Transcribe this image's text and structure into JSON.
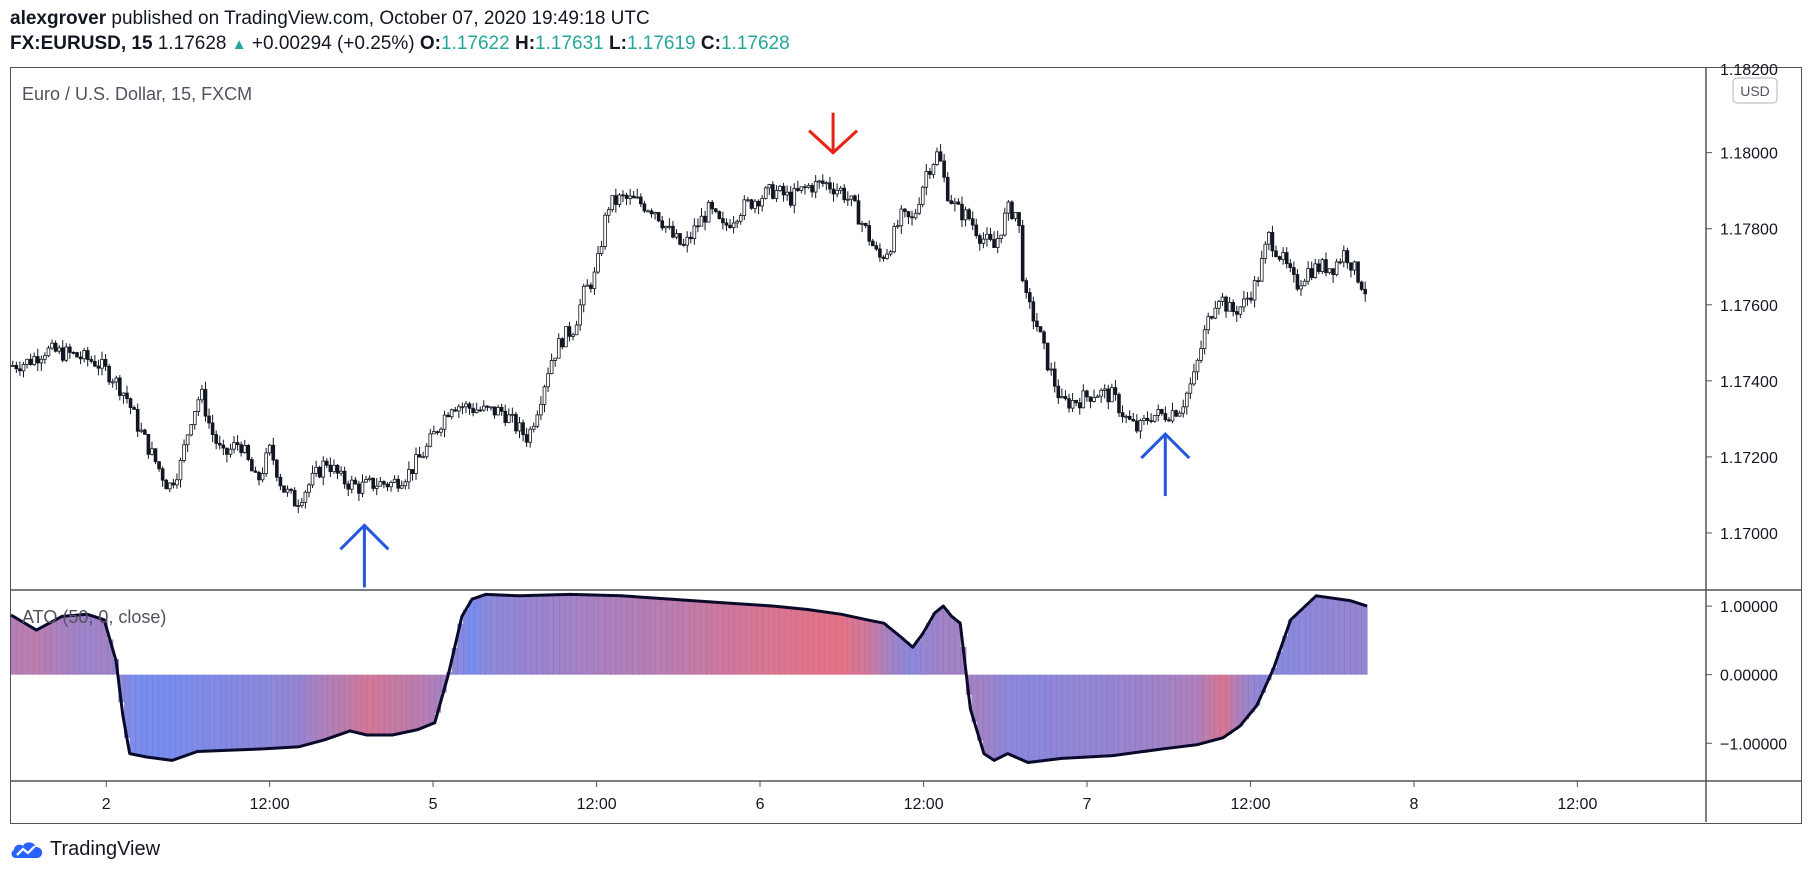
{
  "header": {
    "author": "alexgrover",
    "published_text": "published on TradingView.com, October 07, 2020 19:49:18 UTC",
    "symbol": "FX:EURUSD, 15",
    "last_price": "1.17628",
    "change_icon": "triangle-up-icon",
    "change": "+0.00294 (+0.25%)",
    "o_label": "O:",
    "o_value": "1.17622",
    "h_label": "H:",
    "h_value": "1.17631",
    "l_label": "L:",
    "l_value": "1.17619",
    "c_label": "C:",
    "c_value": "1.17628"
  },
  "footer": {
    "brand": "TradingView",
    "logo_icon": "tradingview-cloud-icon"
  },
  "colors": {
    "accent_up": "#26a69a",
    "arrow_down": "#e8221b",
    "arrow_up": "#2456e0",
    "ato_blue": "#5b7bf0",
    "ato_red": "#e55a6b",
    "ato_line": "#0a0a2a"
  },
  "chart_data": [
    {
      "type": "candlestick",
      "title": "Euro / U.S. Dollar, 15, FXCM",
      "currency_badge": "USD",
      "ylim": [
        1.1685,
        1.1822
      ],
      "y_ticks": [
        1.17,
        1.172,
        1.174,
        1.176,
        1.178,
        1.18
      ],
      "y_tick_labels": [
        "1.17000",
        "1.17200",
        "1.17400",
        "1.17600",
        "1.17800",
        "1.18000"
      ],
      "top_tick_label": "1.18200",
      "x_ticks": [
        {
          "pos": 0.0562,
          "label": "2"
        },
        {
          "pos": 0.1526,
          "label": "12:00"
        },
        {
          "pos": 0.249,
          "label": "5"
        },
        {
          "pos": 0.3455,
          "label": "12:00"
        },
        {
          "pos": 0.4419,
          "label": "6"
        },
        {
          "pos": 0.5384,
          "label": "12:00"
        },
        {
          "pos": 0.6348,
          "label": "7"
        },
        {
          "pos": 0.7313,
          "label": "12:00"
        },
        {
          "pos": 0.8277,
          "label": "8"
        },
        {
          "pos": 0.9241,
          "label": "12:00"
        }
      ],
      "close_path": [
        [
          0.0,
          1.1744
        ],
        [
          0.01,
          1.1745
        ],
        [
          0.02,
          1.1748
        ],
        [
          0.035,
          1.1747
        ],
        [
          0.05,
          1.1745
        ],
        [
          0.06,
          1.1741
        ],
        [
          0.068,
          1.1736
        ],
        [
          0.075,
          1.1728
        ],
        [
          0.085,
          1.1719
        ],
        [
          0.093,
          1.1712
        ],
        [
          0.1,
          1.1718
        ],
        [
          0.106,
          1.173
        ],
        [
          0.112,
          1.1737
        ],
        [
          0.118,
          1.1727
        ],
        [
          0.125,
          1.172
        ],
        [
          0.135,
          1.1724
        ],
        [
          0.145,
          1.1713
        ],
        [
          0.153,
          1.1722
        ],
        [
          0.16,
          1.1712
        ],
        [
          0.168,
          1.1708
        ],
        [
          0.178,
          1.1714
        ],
        [
          0.186,
          1.1719
        ],
        [
          0.195,
          1.1714
        ],
        [
          0.205,
          1.1712
        ],
        [
          0.215,
          1.1713
        ],
        [
          0.225,
          1.1713
        ],
        [
          0.235,
          1.1716
        ],
        [
          0.245,
          1.1722
        ],
        [
          0.252,
          1.1728
        ],
        [
          0.26,
          1.1734
        ],
        [
          0.27,
          1.1733
        ],
        [
          0.28,
          1.1732
        ],
        [
          0.29,
          1.1732
        ],
        [
          0.298,
          1.1728
        ],
        [
          0.305,
          1.1725
        ],
        [
          0.312,
          1.1735
        ],
        [
          0.318,
          1.1745
        ],
        [
          0.325,
          1.1751
        ],
        [
          0.332,
          1.1754
        ],
        [
          0.338,
          1.1763
        ],
        [
          0.345,
          1.1768
        ],
        [
          0.352,
          1.1786
        ],
        [
          0.36,
          1.1788
        ],
        [
          0.37,
          1.1787
        ],
        [
          0.38,
          1.1785
        ],
        [
          0.39,
          1.1778
        ],
        [
          0.397,
          1.1775
        ],
        [
          0.405,
          1.1781
        ],
        [
          0.412,
          1.1785
        ],
        [
          0.42,
          1.178
        ],
        [
          0.43,
          1.1785
        ],
        [
          0.44,
          1.1788
        ],
        [
          0.45,
          1.179
        ],
        [
          0.46,
          1.1788
        ],
        [
          0.47,
          1.1791
        ],
        [
          0.48,
          1.1792
        ],
        [
          0.49,
          1.179
        ],
        [
          0.497,
          1.1786
        ],
        [
          0.505,
          1.1779
        ],
        [
          0.512,
          1.1772
        ],
        [
          0.518,
          1.1775
        ],
        [
          0.525,
          1.1783
        ],
        [
          0.532,
          1.1782
        ],
        [
          0.54,
          1.1795
        ],
        [
          0.547,
          1.18
        ],
        [
          0.552,
          1.179
        ],
        [
          0.558,
          1.1785
        ],
        [
          0.565,
          1.1783
        ],
        [
          0.572,
          1.1778
        ],
        [
          0.58,
          1.1775
        ],
        [
          0.588,
          1.1785
        ],
        [
          0.594,
          1.1784
        ],
        [
          0.598,
          1.1762
        ],
        [
          0.605,
          1.1755
        ],
        [
          0.612,
          1.1744
        ],
        [
          0.62,
          1.1734
        ],
        [
          0.63,
          1.1735
        ],
        [
          0.64,
          1.1737
        ],
        [
          0.65,
          1.1736
        ],
        [
          0.658,
          1.173
        ],
        [
          0.665,
          1.1727
        ],
        [
          0.672,
          1.1731
        ],
        [
          0.68,
          1.1731
        ],
        [
          0.69,
          1.1733
        ],
        [
          0.698,
          1.1741
        ],
        [
          0.705,
          1.1754
        ],
        [
          0.712,
          1.1763
        ],
        [
          0.72,
          1.1758
        ],
        [
          0.727,
          1.176
        ],
        [
          0.735,
          1.1766
        ],
        [
          0.742,
          1.1778
        ],
        [
          0.75,
          1.1772
        ],
        [
          0.758,
          1.1765
        ],
        [
          0.765,
          1.1769
        ],
        [
          0.773,
          1.177
        ],
        [
          0.78,
          1.177
        ],
        [
          0.787,
          1.1774
        ],
        [
          0.794,
          1.1768
        ],
        [
          0.8,
          1.1763
        ]
      ],
      "annotations": [
        {
          "type": "arrow-up",
          "name": "buy-arrow-1",
          "x": 0.2085,
          "y": 1.1702
        },
        {
          "type": "arrow-down",
          "name": "sell-arrow",
          "x": 0.485,
          "y": 1.18
        },
        {
          "type": "arrow-up",
          "name": "buy-arrow-2",
          "x": 0.681,
          "y": 1.1726
        }
      ]
    },
    {
      "type": "area",
      "title": "ATO (50, 0, close)",
      "ylim": [
        -1.55,
        1.22
      ],
      "y_ticks": [
        1,
        0,
        -1
      ],
      "y_tick_labels": [
        "1.00000",
        "0.00000",
        "−1.00000"
      ],
      "x": [
        0.0,
        0.015,
        0.03,
        0.045,
        0.055,
        0.062,
        0.066,
        0.07,
        0.08,
        0.095,
        0.11,
        0.13,
        0.15,
        0.17,
        0.185,
        0.2,
        0.21,
        0.225,
        0.24,
        0.25,
        0.258,
        0.266,
        0.272,
        0.28,
        0.3,
        0.33,
        0.36,
        0.39,
        0.42,
        0.45,
        0.47,
        0.49,
        0.505,
        0.515,
        0.525,
        0.532,
        0.538,
        0.545,
        0.55,
        0.555,
        0.56,
        0.566,
        0.574,
        0.58,
        0.588,
        0.6,
        0.62,
        0.65,
        0.68,
        0.7,
        0.715,
        0.725,
        0.735,
        0.745,
        0.755,
        0.77,
        0.79,
        0.8
      ],
      "values": [
        0.87,
        0.65,
        0.85,
        0.88,
        0.8,
        0.2,
        -0.6,
        -1.15,
        -1.2,
        -1.25,
        -1.12,
        -1.1,
        -1.08,
        -1.05,
        -0.95,
        -0.82,
        -0.88,
        -0.88,
        -0.8,
        -0.7,
        0.0,
        0.85,
        1.1,
        1.17,
        1.15,
        1.17,
        1.15,
        1.1,
        1.05,
        1.0,
        0.95,
        0.88,
        0.8,
        0.75,
        0.55,
        0.4,
        0.6,
        0.9,
        1.0,
        0.85,
        0.75,
        -0.5,
        -1.15,
        -1.25,
        -1.15,
        -1.28,
        -1.22,
        -1.18,
        -1.08,
        -1.02,
        -0.92,
        -0.75,
        -0.45,
        0.1,
        0.8,
        1.15,
        1.08,
        1.0
      ],
      "color_index": [
        0.55,
        0.6,
        0.45,
        0.35,
        0.4,
        0.3,
        0.2,
        0.1,
        0.05,
        0.05,
        0.1,
        0.15,
        0.2,
        0.3,
        0.5,
        0.65,
        0.8,
        0.7,
        0.6,
        0.5,
        0.35,
        0.15,
        0.05,
        0.2,
        0.3,
        0.4,
        0.5,
        0.6,
        0.75,
        0.85,
        0.9,
        0.95,
        0.75,
        0.5,
        0.3,
        0.2,
        0.3,
        0.35,
        0.4,
        0.4,
        0.4,
        0.4,
        0.4,
        0.3,
        0.25,
        0.2,
        0.25,
        0.3,
        0.4,
        0.5,
        0.85,
        0.45,
        0.25,
        0.2,
        0.2,
        0.25,
        0.3,
        0.3
      ]
    }
  ]
}
